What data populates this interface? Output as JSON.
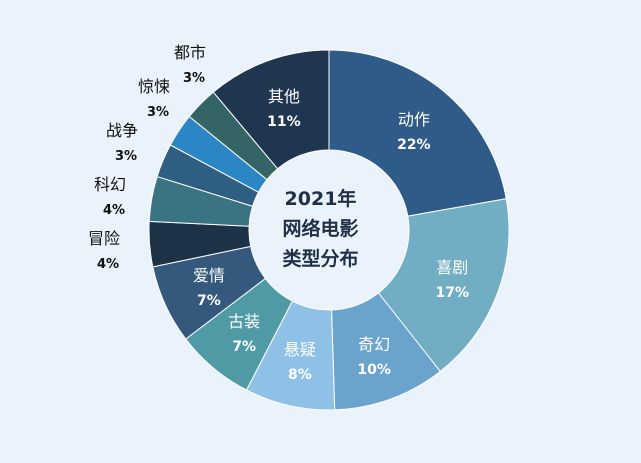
{
  "chart_data": {
    "type": "pie",
    "title_lines": [
      "2021年",
      "网络电影",
      "类型分布"
    ],
    "slices": [
      {
        "label": "动作",
        "value": 22,
        "value_label": "22%",
        "color": "#2e5b87"
      },
      {
        "label": "喜剧",
        "value": 17,
        "value_label": "17%",
        "color": "#71aec4"
      },
      {
        "label": "奇幻",
        "value": 10,
        "value_label": "10%",
        "color": "#6aa4cc"
      },
      {
        "label": "悬疑",
        "value": 8,
        "value_label": "8%",
        "color": "#8fc0e6"
      },
      {
        "label": "古装",
        "value": 7,
        "value_label": "7%",
        "color": "#4f9aa5"
      },
      {
        "label": "爱情",
        "value": 7,
        "value_label": "7%",
        "color": "#35587d"
      },
      {
        "label": "冒险",
        "value": 4,
        "value_label": "4%",
        "color": "#1d3247"
      },
      {
        "label": "科幻",
        "value": 4,
        "value_label": "4%",
        "color": "#3a7382"
      },
      {
        "label": "战争",
        "value": 3,
        "value_label": "3%",
        "color": "#2e5e82"
      },
      {
        "label": "惊悚",
        "value": 3,
        "value_label": "3%",
        "color": "#2c86c6"
      },
      {
        "label": "都市",
        "value": 3,
        "value_label": "3%",
        "color": "#356466"
      },
      {
        "label": "其他",
        "value": 11,
        "value_label": "11%",
        "color": "#1f3550"
      }
    ]
  }
}
